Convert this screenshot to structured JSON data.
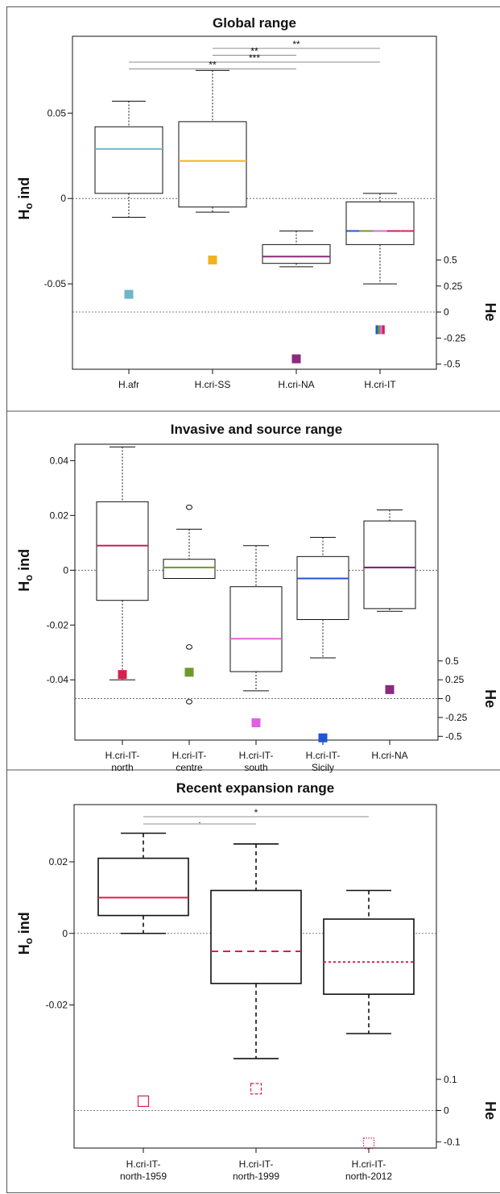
{
  "chart_data": [
    {
      "type": "box",
      "title": "Global range",
      "ylabel": "Ho ind",
      "ylabel2": "He",
      "ylim": [
        -0.1,
        0.095
      ],
      "yticks": [
        {
          "v": 0.05,
          "t": "0.05"
        },
        {
          "v": 0,
          "t": "0"
        },
        {
          "v": -0.05,
          "t": "-0.05"
        }
      ],
      "y2lim": [
        -0.55,
        1.0
      ],
      "y2ticks": [
        {
          "v": 0.5,
          "t": "0.5"
        },
        {
          "v": 0.25,
          "t": "0.25"
        },
        {
          "v": 0,
          "t": "0"
        },
        {
          "v": -0.25,
          "t": "-0.25"
        },
        {
          "v": -0.5,
          "t": "-0.5"
        }
      ],
      "categories": [
        {
          "lines": [
            "H.afr"
          ]
        },
        {
          "lines": [
            "H.cri-SS"
          ]
        },
        {
          "lines": [
            "H.cri-NA"
          ]
        },
        {
          "lines": [
            "H.cri-IT"
          ]
        }
      ],
      "boxes": [
        {
          "min": -0.011,
          "q1": 0.003,
          "median": 0.029,
          "q3": 0.042,
          "max": 0.057,
          "median_color": "#6fb6c8",
          "outliers": []
        },
        {
          "min": -0.008,
          "q1": -0.005,
          "median": 0.022,
          "q3": 0.045,
          "max": 0.075,
          "median_color": "#f0b21e",
          "outliers": []
        },
        {
          "min": -0.04,
          "q1": -0.038,
          "median": -0.034,
          "q3": -0.027,
          "max": -0.019,
          "median_color": "#8b2a7e",
          "outliers": []
        },
        {
          "min": -0.05,
          "q1": -0.027,
          "median": -0.019,
          "q3": -0.002,
          "max": 0.003,
          "median_color": "multi",
          "outliers": []
        }
      ],
      "he_points": [
        {
          "value": 0.17,
          "color": "#6fb6c8"
        },
        {
          "value": 0.5,
          "color": "#f0b21e"
        },
        {
          "value": -0.45,
          "color": "#8b2a7e"
        },
        {
          "value": -0.17,
          "color": "multi"
        }
      ],
      "significance": [
        {
          "from": 2,
          "to": 4,
          "label": "**"
        },
        {
          "from": 2,
          "to": 3,
          "label": "**"
        },
        {
          "from": 1,
          "to": 4,
          "label": "***"
        },
        {
          "from": 1,
          "to": 3,
          "label": "**"
        }
      ],
      "zero_line": "dotted"
    },
    {
      "type": "box",
      "title": "Invasive and source range",
      "ylabel": "Ho ind",
      "ylabel2": "He",
      "ylim": [
        -0.062,
        0.046
      ],
      "yticks": [
        {
          "v": 0.04,
          "t": "0.04"
        },
        {
          "v": 0.02,
          "t": "0.02"
        },
        {
          "v": 0,
          "t": "0"
        },
        {
          "v": -0.02,
          "t": "-0.02"
        },
        {
          "v": -0.04,
          "t": "-0.04"
        }
      ],
      "y2lim": [
        -0.55,
        1.3
      ],
      "y2ticks": [
        {
          "v": 0.5,
          "t": "0.5"
        },
        {
          "v": 0.25,
          "t": "0.25"
        },
        {
          "v": 0,
          "t": "0"
        },
        {
          "v": -0.25,
          "t": "-0.25"
        },
        {
          "v": -0.5,
          "t": "-0.5"
        }
      ],
      "categories": [
        {
          "lines": [
            "H.cri-IT-",
            "north"
          ]
        },
        {
          "lines": [
            "H.cri-IT-",
            "centre"
          ]
        },
        {
          "lines": [
            "H.cri-IT-",
            "south"
          ]
        },
        {
          "lines": [
            "H.cri-IT-",
            "Sicily"
          ]
        },
        {
          "lines": [
            "H.cri-NA"
          ]
        }
      ],
      "boxes": [
        {
          "min": -0.04,
          "q1": -0.011,
          "median": 0.009,
          "q3": 0.025,
          "max": 0.045,
          "median_color": "#c0245a",
          "outliers": []
        },
        {
          "min": -0.003,
          "q1": -0.003,
          "median": 0.001,
          "q3": 0.004,
          "max": 0.015,
          "median_color": "#6b9a2c",
          "outliers": [
            0.023,
            -0.028,
            -0.048
          ]
        },
        {
          "min": -0.044,
          "q1": -0.037,
          "median": -0.025,
          "q3": -0.006,
          "max": 0.009,
          "median_color": "#d966d9",
          "outliers": []
        },
        {
          "min": -0.032,
          "q1": -0.018,
          "median": -0.003,
          "q3": 0.005,
          "max": 0.012,
          "median_color": "#2155d6",
          "outliers": []
        },
        {
          "min": -0.015,
          "q1": -0.014,
          "median": 0.001,
          "q3": 0.018,
          "max": 0.022,
          "median_color": "#7a1a6e",
          "outliers": []
        }
      ],
      "he_points": [
        {
          "value": 0.32,
          "color": "#d6204f"
        },
        {
          "value": 0.35,
          "color": "#6b9a2c"
        },
        {
          "value": 0.12,
          "color": "#8b2a7e"
        },
        {
          "value": -0.32,
          "color": "#e060e0"
        },
        {
          "value": -0.52,
          "color": "#2155d6"
        }
      ],
      "he_point_order": [
        1,
        2,
        5,
        3,
        4
      ],
      "zero_line": "dotted"
    },
    {
      "type": "box",
      "title": "Recent expansion range",
      "ylabel": "Ho ind",
      "ylabel2": "He",
      "ylim": [
        -0.06,
        0.036
      ],
      "yticks": [
        {
          "v": 0.02,
          "t": "0.02"
        },
        {
          "v": 0,
          "t": "0"
        },
        {
          "v": -0.02,
          "t": "-0.02"
        }
      ],
      "y2lim": [
        -0.12,
        0.2
      ],
      "y2ticks": [
        {
          "v": 0.1,
          "t": "0.1"
        },
        {
          "v": 0,
          "t": "0"
        },
        {
          "v": -0.1,
          "t": "-0.1"
        }
      ],
      "categories": [
        {
          "lines": [
            "H.cri-IT-",
            "north-1959"
          ]
        },
        {
          "lines": [
            "H.cri-IT-",
            "north-1999"
          ]
        },
        {
          "lines": [
            "H.cri-IT-",
            "north-2012"
          ]
        }
      ],
      "boxes": [
        {
          "min": 0,
          "q1": 0.005,
          "median": 0.01,
          "q3": 0.021,
          "max": 0.028,
          "median_color": "#d6204f",
          "median_style": "solid",
          "outliers": []
        },
        {
          "min": -0.035,
          "q1": -0.014,
          "median": -0.005,
          "q3": 0.012,
          "max": 0.025,
          "median_color": "#d6204f",
          "median_style": "dashed",
          "outliers": []
        },
        {
          "min": -0.028,
          "q1": -0.017,
          "median": -0.008,
          "q3": 0.004,
          "max": 0.012,
          "median_color": "#d6204f",
          "median_style": "dotted",
          "outliers": []
        }
      ],
      "he_points": [
        {
          "value": 0.03,
          "color": "#d6204f",
          "style": "solid"
        },
        {
          "value": 0.07,
          "color": "#d6204f",
          "style": "dashed"
        },
        {
          "value": -0.105,
          "color": "#d6204f",
          "style": "dotted"
        }
      ],
      "significance": [
        {
          "from": 1,
          "to": 3,
          "label": "*"
        },
        {
          "from": 1,
          "to": 2,
          "label": "."
        }
      ],
      "zero_line": "dotted"
    }
  ]
}
